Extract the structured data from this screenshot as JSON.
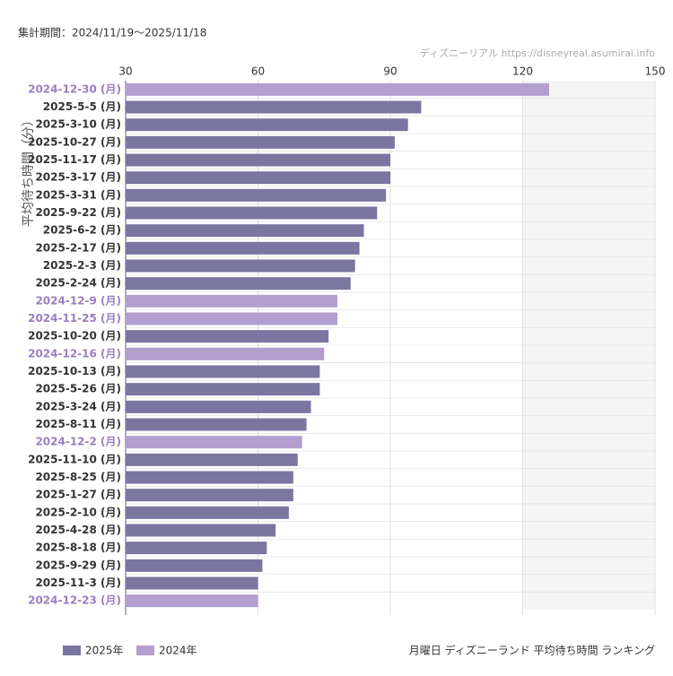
{
  "chart_data": {
    "type": "barh",
    "subtitle": "集計期間：2024/11/19〜2025/11/18",
    "source": "ディズニーリアル https://disneyreal.asumirai.info",
    "ylabel": "平均待ち時間（分）",
    "footer": "月曜日 ディズニーランド 平均待ち時間 ランキング",
    "categories": [
      "2024-12-30 (月)",
      "2025-5-5 (月)",
      "2025-3-10 (月)",
      "2025-10-27 (月)",
      "2025-11-17 (月)",
      "2025-3-17 (月)",
      "2025-3-31 (月)",
      "2025-9-22 (月)",
      "2025-6-2 (月)",
      "2025-2-17 (月)",
      "2025-2-3 (月)",
      "2025-2-24 (月)",
      "2024-12-9 (月)",
      "2024-11-25 (月)",
      "2025-10-20 (月)",
      "2024-12-16 (月)",
      "2025-10-13 (月)",
      "2025-5-26 (月)",
      "2025-3-24 (月)",
      "2025-8-11 (月)",
      "2024-12-2 (月)",
      "2025-11-10 (月)",
      "2025-8-25 (月)",
      "2025-1-27 (月)",
      "2025-2-10 (月)",
      "2025-4-28 (月)",
      "2025-8-18 (月)",
      "2025-9-29 (月)",
      "2025-11-3 (月)",
      "2024-12-23 (月)"
    ],
    "series": [
      {
        "name": "2025年",
        "color": "#7b76a0",
        "label_color": "#333333",
        "values": [
          null,
          97,
          94,
          91,
          90,
          90,
          89,
          87,
          84,
          83,
          82,
          81,
          null,
          null,
          76,
          null,
          74,
          74,
          72,
          71,
          null,
          69,
          68,
          68,
          67,
          64,
          62,
          61,
          60,
          null
        ]
      },
      {
        "name": "2024年",
        "color": "#b39ecf",
        "label_color": "#9b7fc0",
        "values": [
          126,
          null,
          null,
          null,
          null,
          null,
          null,
          null,
          null,
          null,
          null,
          null,
          78,
          78,
          null,
          75,
          null,
          null,
          null,
          null,
          70,
          null,
          null,
          null,
          null,
          null,
          null,
          null,
          null,
          60
        ]
      }
    ],
    "xlim": [
      30,
      150
    ],
    "xticks": [
      30,
      60,
      90,
      120,
      150
    ],
    "grid": true
  }
}
